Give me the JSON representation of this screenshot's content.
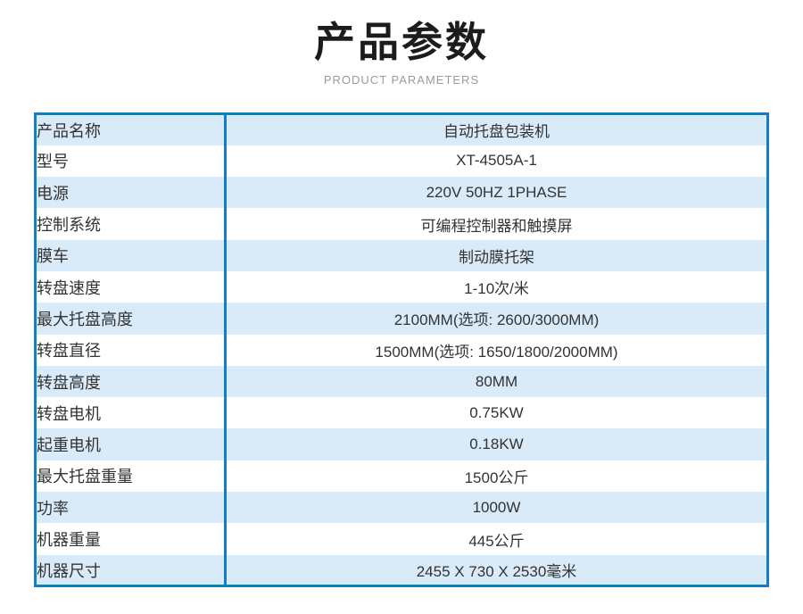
{
  "page": {
    "title": "产品参数",
    "subtitle": "PRODUCT PARAMETERS"
  },
  "table": {
    "rows": [
      {
        "label": "产品名称",
        "value": "自动托盘包装机"
      },
      {
        "label": "型号",
        "value": "XT-4505A-1"
      },
      {
        "label": "电源",
        "value": "220V 50HZ 1PHASE"
      },
      {
        "label": "控制系统",
        "value": "可编程控制器和触摸屏"
      },
      {
        "label": "膜车",
        "value": "制动膜托架"
      },
      {
        "label": "转盘速度",
        "value": "1-10次/米"
      },
      {
        "label": "最大托盘高度",
        "value": "2100MM(选项: 2600/3000MM)"
      },
      {
        "label": "转盘直径",
        "value": "1500MM(选项: 1650/1800/2000MM)"
      },
      {
        "label": "转盘高度",
        "value": "80MM"
      },
      {
        "label": "转盘电机",
        "value": "0.75KW"
      },
      {
        "label": "起重电机",
        "value": "0.18KW"
      },
      {
        "label": "最大托盘重量",
        "value": "1500公斤"
      },
      {
        "label": "功率",
        "value": "1000W"
      },
      {
        "label": "机器重量",
        "value": "445公斤"
      },
      {
        "label": "机器尺寸",
        "value": "2455 X 730 X 2530毫米"
      }
    ]
  },
  "colors": {
    "border": "#107fc4",
    "row-alt": "#d9eaf8",
    "text": "#333333",
    "title": "#1c1c1c",
    "subtitle": "#9b9b9b"
  }
}
